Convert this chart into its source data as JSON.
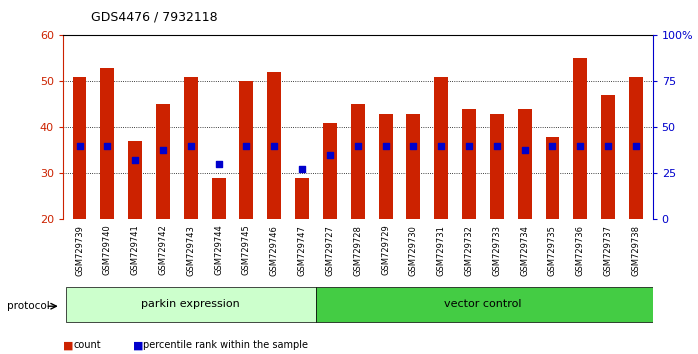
{
  "title": "GDS4476 / 7932118",
  "samples": [
    "GSM729739",
    "GSM729740",
    "GSM729741",
    "GSM729742",
    "GSM729743",
    "GSM729744",
    "GSM729745",
    "GSM729746",
    "GSM729747",
    "GSM729727",
    "GSM729728",
    "GSM729729",
    "GSM729730",
    "GSM729731",
    "GSM729732",
    "GSM729733",
    "GSM729734",
    "GSM729735",
    "GSM729736",
    "GSM729737",
    "GSM729738"
  ],
  "counts": [
    51,
    53,
    37,
    45,
    51,
    29,
    50,
    52,
    29,
    41,
    45,
    43,
    43,
    51,
    44,
    43,
    44,
    38,
    55,
    47,
    51
  ],
  "percentile_ranks": [
    36,
    36,
    33,
    35,
    36,
    32,
    36,
    36,
    31,
    34,
    36,
    36,
    36,
    36,
    36,
    36,
    35,
    36,
    36,
    36,
    36
  ],
  "group1_label": "parkin expression",
  "group2_label": "vector control",
  "group1_count": 9,
  "group2_count": 12,
  "protocol_label": "protocol",
  "bar_color": "#cc2200",
  "dot_color": "#0000cc",
  "group1_color": "#ccffcc",
  "group2_color": "#44cc44",
  "ymin": 20,
  "ymax": 60,
  "yticks": [
    20,
    30,
    40,
    50,
    60
  ],
  "right_yticks": [
    0,
    25,
    50,
    75,
    100
  ],
  "right_yticklabels": [
    "0",
    "25",
    "50",
    "75",
    "100%"
  ],
  "bar_color_rgb": "#cc2200",
  "dot_color_rgb": "#0000cc",
  "bg_color": "#c8c8c8",
  "legend_count_label": "count",
  "legend_pct_label": "percentile rank within the sample"
}
